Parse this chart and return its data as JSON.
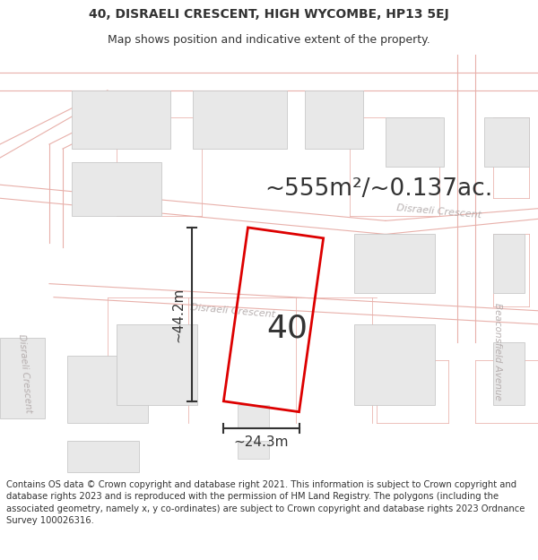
{
  "title_line1": "40, DISRAELI CRESCENT, HIGH WYCOMBE, HP13 5EJ",
  "title_line2": "Map shows position and indicative extent of the property.",
  "area_text": "~555m²/~0.137ac.",
  "label_number": "40",
  "dim_height": "~44.2m",
  "dim_width": "~24.3m",
  "footer_text": "Contains OS data © Crown copyright and database right 2021. This information is subject to Crown copyright and database rights 2023 and is reproduced with the permission of HM Land Registry. The polygons (including the associated geometry, namely x, y co-ordinates) are subject to Crown copyright and database rights 2023 Ordnance Survey 100026316.",
  "bg_color": "#ffffff",
  "map_bg": "#ffffff",
  "road_line_color": "#e8b0aa",
  "road_fill_color": "#f5e8e6",
  "building_fill": "#e8e8e8",
  "building_edge": "#c8c8c8",
  "property_color": "#dd0000",
  "dim_color": "#333333",
  "text_color": "#333333",
  "road_label_color": "#b0a8a8",
  "title_fontsize": 10,
  "subtitle_fontsize": 9,
  "area_fontsize": 19,
  "label_fontsize": 26,
  "dim_fontsize": 11,
  "footer_fontsize": 7.2,
  "road_lw": 0.8
}
